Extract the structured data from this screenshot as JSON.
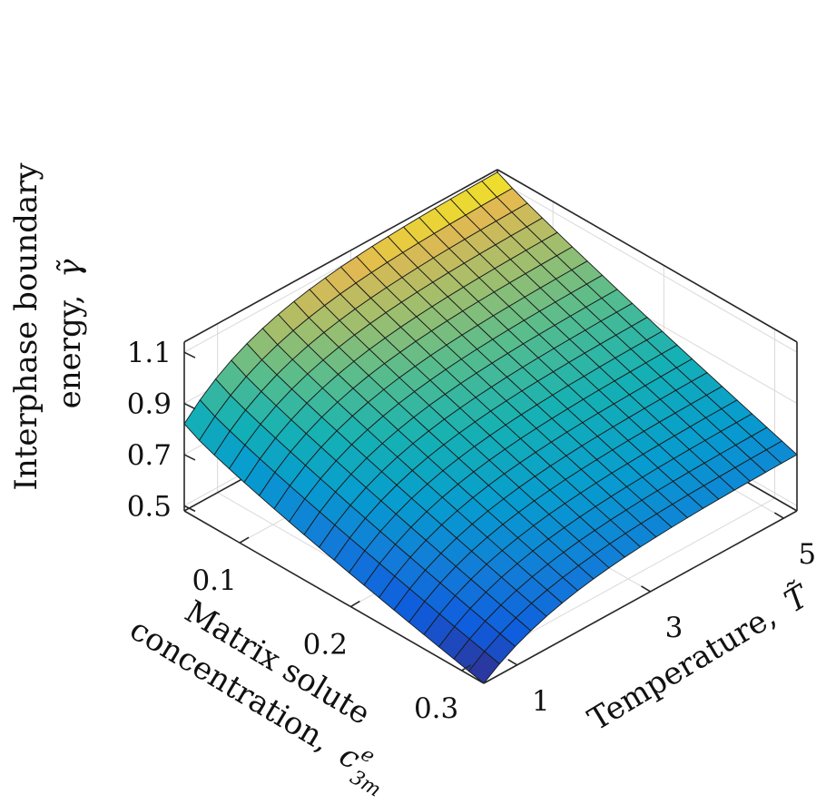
{
  "chart_data": {
    "type": "surface",
    "x_axis": {
      "label_line1": "Matrix solute",
      "label_line2": "concentration,",
      "symbol": "c",
      "symbol_sup": "e",
      "symbol_sub": "3m",
      "ticks": [
        "0.1",
        "0.2",
        "0.3"
      ],
      "tick_values": [
        0.1,
        0.2,
        0.3
      ],
      "range": [
        0.05,
        0.32
      ]
    },
    "y_axis": {
      "label": "Temperature,",
      "symbol": "T̃",
      "ticks": [
        "1",
        "3",
        "5"
      ],
      "tick_values": [
        1,
        3,
        5
      ],
      "range": [
        0.5,
        5.2
      ]
    },
    "z_axis": {
      "label_line1": "Interphase boundary",
      "label_line2": "energy,",
      "symbol": "γ̃",
      "ticks": [
        "0.5",
        "0.7",
        "0.9",
        "1.1"
      ],
      "tick_values": [
        0.5,
        0.7,
        0.9,
        1.1
      ],
      "range": [
        0.48,
        1.14
      ]
    },
    "colormap": "parula",
    "grid": true,
    "surface_corners": {
      "c_0.05_T_0.5": 0.82,
      "c_0.05_T_5.2": 1.13,
      "c_0.32_T_0.5": 0.48,
      "c_0.32_T_5.2": 0.7
    }
  }
}
